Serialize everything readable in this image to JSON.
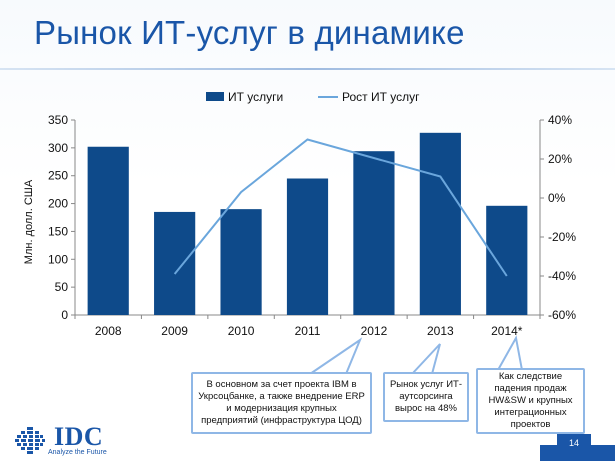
{
  "slide": {
    "title": "Рынок ИТ-услуг в динамике",
    "page_number": "14"
  },
  "chart_data": {
    "type": "bar",
    "categories": [
      "2008",
      "2009",
      "2010",
      "2011",
      "2012",
      "2013",
      "2014*"
    ],
    "series": [
      {
        "name": "ИТ услуги",
        "type": "bar",
        "axis": "left",
        "values": [
          302,
          185,
          190,
          245,
          294,
          327,
          196
        ]
      },
      {
        "name": "Рост ИТ услуг",
        "type": "line",
        "axis": "right",
        "values": [
          null,
          -39,
          3,
          30,
          null,
          11,
          -40
        ]
      }
    ],
    "ylabel": "Млн. долл. США",
    "ylim": [
      0,
      350
    ],
    "y_ticks": [
      "0",
      "50",
      "100",
      "150",
      "200",
      "250",
      "300",
      "350"
    ],
    "y2lim": [
      -60,
      40
    ],
    "y2_ticks": [
      "-60%",
      "-40%",
      "-20%",
      "0%",
      "20%",
      "40%"
    ],
    "legend_position": "top",
    "grid": false,
    "colors": {
      "bar": "#0e4a8a",
      "line": "#6aa6dc"
    }
  },
  "callouts": [
    {
      "text": "В основном за счет проекта IBM в Укрсоцбанке, а также внедрение ERP и модернизация крупных предприятий (инфраструктура ЦОД)"
    },
    {
      "text": "Рынок услуг ИТ-аутсорсинга вырос на 48%"
    },
    {
      "text": "Как следствие падения продаж HW&SW и крупных интеграционных проектов"
    }
  ],
  "logo": {
    "text": "IDC",
    "tagline": "Analyze the Future"
  }
}
